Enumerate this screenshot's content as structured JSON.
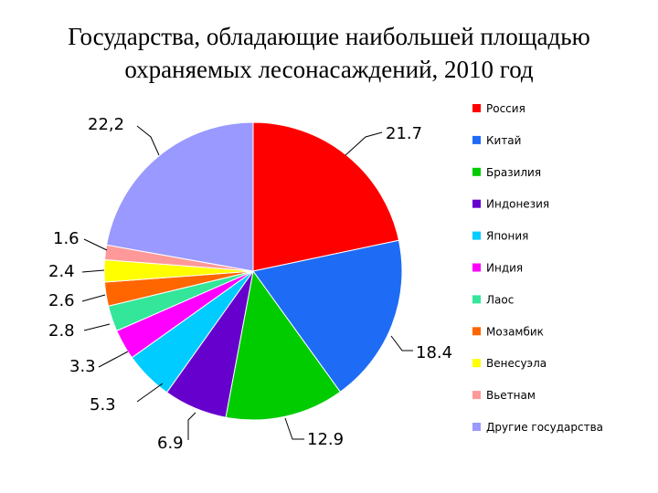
{
  "chart_data": {
    "type": "pie",
    "title": [
      "Государства, обладающие наибольшей площадью",
      "охраняемых лесонасаждений, 2010 год"
    ],
    "categories": [
      "Россия",
      "Китай",
      "Бразилия",
      "Индонезия",
      "Япония",
      "Индия",
      "Лаос",
      "Мозамбик",
      "Венесуэла",
      "Вьетнам",
      "Другие государства"
    ],
    "values": [
      21.7,
      18.4,
      12.9,
      6.9,
      5.3,
      3.3,
      2.8,
      2.6,
      2.4,
      1.6,
      22.2
    ],
    "data_labels": [
      "21.7",
      "18.4",
      "12.9",
      "6.9",
      "5.3",
      "3.3",
      "2.8",
      "2.6",
      "2.4",
      "1.6",
      "22,2"
    ],
    "colors": [
      "#ff0000",
      "#1e6cf5",
      "#00cc00",
      "#6600cc",
      "#00ccff",
      "#ff00ff",
      "#33e699",
      "#ff6600",
      "#ffff00",
      "#ff9999",
      "#9999ff"
    ],
    "legend_placement": "right"
  }
}
